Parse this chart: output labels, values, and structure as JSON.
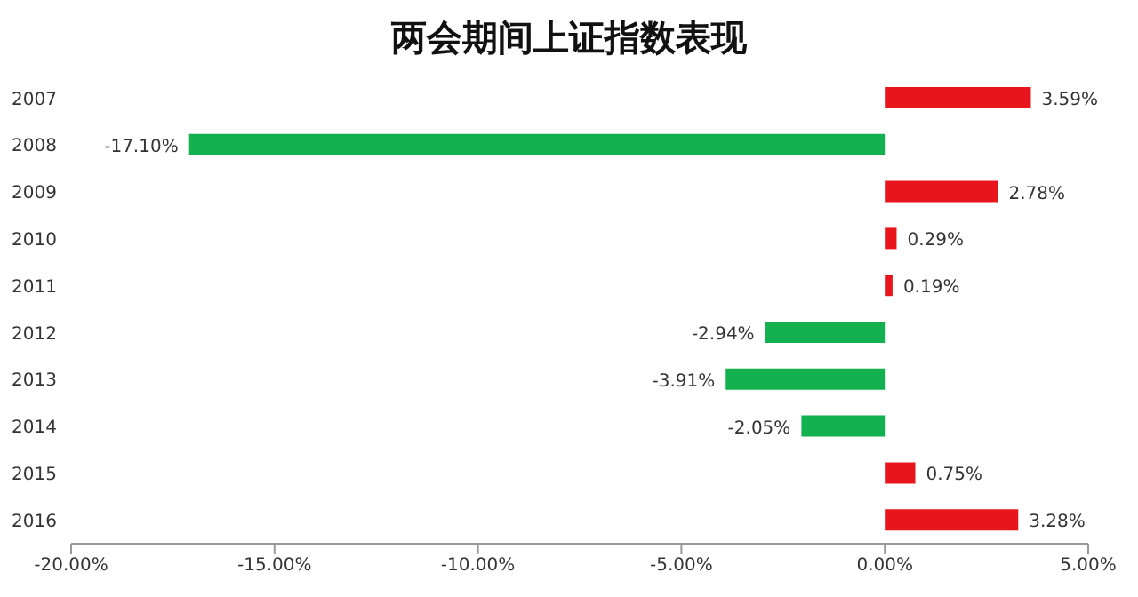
{
  "chart_data": {
    "type": "bar",
    "orientation": "horizontal",
    "title": "两会期间上证指数表现",
    "categories": [
      "2007",
      "2008",
      "2009",
      "2010",
      "2011",
      "2012",
      "2013",
      "2014",
      "2015",
      "2016"
    ],
    "values": [
      3.59,
      -17.1,
      2.78,
      0.29,
      0.19,
      -2.94,
      -3.91,
      -2.05,
      0.75,
      3.28
    ],
    "value_labels": [
      "3.59%",
      "-17.10%",
      "2.78%",
      "0.29%",
      "0.19%",
      "-2.94%",
      "-3.91%",
      "-2.05%",
      "0.75%",
      "3.28%"
    ],
    "colors": [
      "#e8161c",
      "#13b04f",
      "#e8161c",
      "#e8161c",
      "#e8161c",
      "#13b04f",
      "#13b04f",
      "#13b04f",
      "#e8161c",
      "#e8161c"
    ],
    "xlim": [
      -20,
      5
    ],
    "xticks": [
      {
        "value": -20,
        "label": "-20.00%"
      },
      {
        "value": -15,
        "label": "-15.00%"
      },
      {
        "value": -10,
        "label": "-10.00%"
      },
      {
        "value": -5,
        "label": "-5.00%"
      },
      {
        "value": 0,
        "label": "0.00%"
      },
      {
        "value": 5,
        "label": "5.00%"
      }
    ]
  }
}
